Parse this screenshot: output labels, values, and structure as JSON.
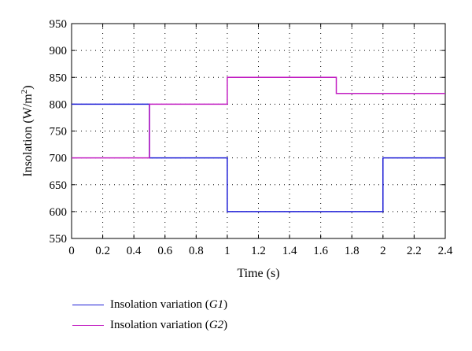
{
  "chart_data": {
    "type": "line",
    "title": "",
    "xlabel": "Time (s)",
    "ylabel": "Insolation (W/m",
    "ylabel_sup": "2",
    "ylabel_end": ")",
    "xlim": [
      0,
      2.4
    ],
    "ylim": [
      550,
      950
    ],
    "xticks": [
      "0",
      "0.2",
      "0.4",
      "0.6",
      "0.8",
      "1",
      "1.2",
      "1.4",
      "1.6",
      "1.8",
      "2",
      "2.2",
      "2.4"
    ],
    "yticks": [
      "550",
      "600",
      "650",
      "700",
      "750",
      "800",
      "850",
      "900",
      "950"
    ],
    "grid": "dotted",
    "legend_position": "below",
    "series": [
      {
        "name_prefix": "Insolation variation (",
        "name_var": "G1",
        "name_suffix": ")",
        "color": "#1f1fd6",
        "step": true,
        "x": [
          0,
          0.5,
          0.5,
          1,
          1,
          2,
          2,
          2.4
        ],
        "y": [
          800,
          800,
          700,
          700,
          600,
          600,
          700,
          700
        ]
      },
      {
        "name_prefix": "Insolation variation (",
        "name_var": "G2",
        "name_suffix": ")",
        "color": "#c21fc2",
        "step": true,
        "x": [
          0,
          0.5,
          0.5,
          1,
          1,
          1.7,
          1.7,
          2.4
        ],
        "y": [
          700,
          700,
          800,
          800,
          850,
          850,
          820,
          820
        ]
      }
    ]
  }
}
